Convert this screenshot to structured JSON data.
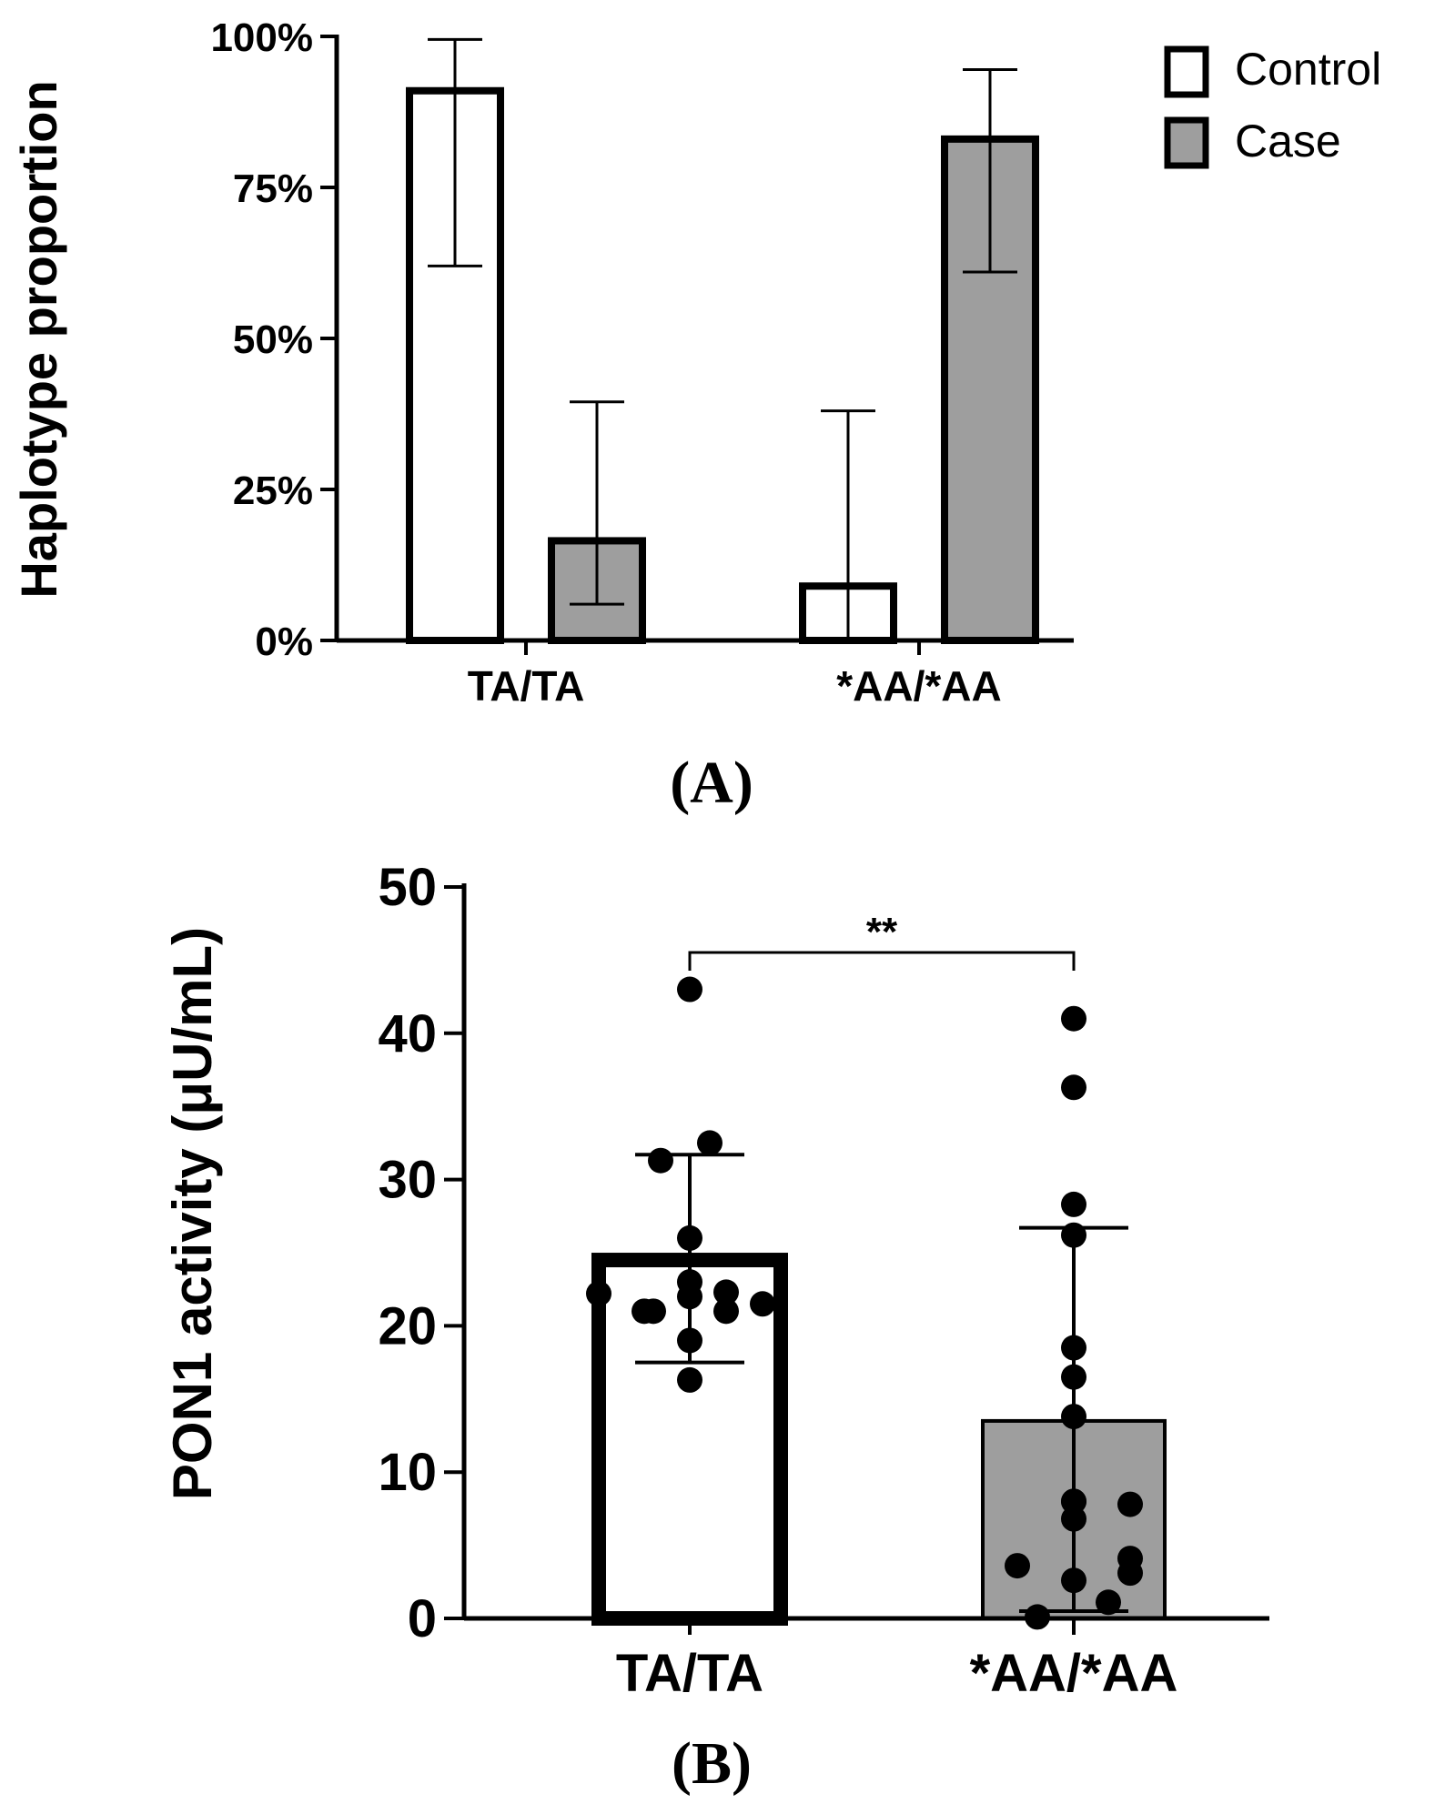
{
  "colors": {
    "control_fill": "#ffffff",
    "case_fill": "#9e9e9e",
    "stroke": "#000000"
  },
  "chart_data": [
    {
      "panel": "(A)",
      "type": "bar",
      "ylabel": "Haplotype proportion",
      "xlabel": "",
      "categories": [
        "TA/TA",
        "*AA/*AA"
      ],
      "ylim": [
        0,
        100
      ],
      "yticks": [
        0,
        25,
        50,
        75,
        100
      ],
      "ytick_labels": [
        "0%",
        "25%",
        "50%",
        "75%",
        "100%"
      ],
      "legend": {
        "position": "top-right",
        "entries": [
          "Control",
          "Case"
        ]
      },
      "series": [
        {
          "name": "Control",
          "values": [
            91,
            9
          ],
          "error_low": [
            62,
            0
          ],
          "error_high": [
            99.5,
            38
          ]
        },
        {
          "name": "Case",
          "values": [
            16.5,
            83
          ],
          "error_low": [
            6,
            61
          ],
          "error_high": [
            39.5,
            94.5
          ]
        }
      ]
    },
    {
      "panel": "(B)",
      "type": "bar",
      "ylabel": "PON1 activity (μU/mL)",
      "xlabel": "",
      "categories": [
        "TA/TA",
        "*AA/*AA"
      ],
      "ylim": [
        0,
        50
      ],
      "yticks": [
        0,
        10,
        20,
        30,
        40,
        50
      ],
      "ytick_labels": [
        "0",
        "10",
        "20",
        "30",
        "40",
        "50"
      ],
      "values": [
        24.5,
        13.5
      ],
      "sd_low": [
        17.5,
        0.5
      ],
      "sd_high": [
        31.7,
        26.7
      ],
      "significance": {
        "label": "**",
        "between": [
          "TA/TA",
          "*AA/*AA"
        ]
      },
      "points": [
        {
          "group": "TA/TA",
          "values": [
            43,
            32.5,
            31.3,
            26,
            23,
            22.3,
            22.2,
            22,
            21.5,
            21,
            21,
            21,
            19,
            16.3
          ]
        },
        {
          "group": "*AA/*AA",
          "values": [
            41,
            36.3,
            28.3,
            26.2,
            18.5,
            16.5,
            13.8,
            8,
            8,
            7.8,
            6.8,
            4.1,
            3.6,
            3.1,
            2.6,
            1.1,
            0.1
          ]
        }
      ]
    }
  ]
}
